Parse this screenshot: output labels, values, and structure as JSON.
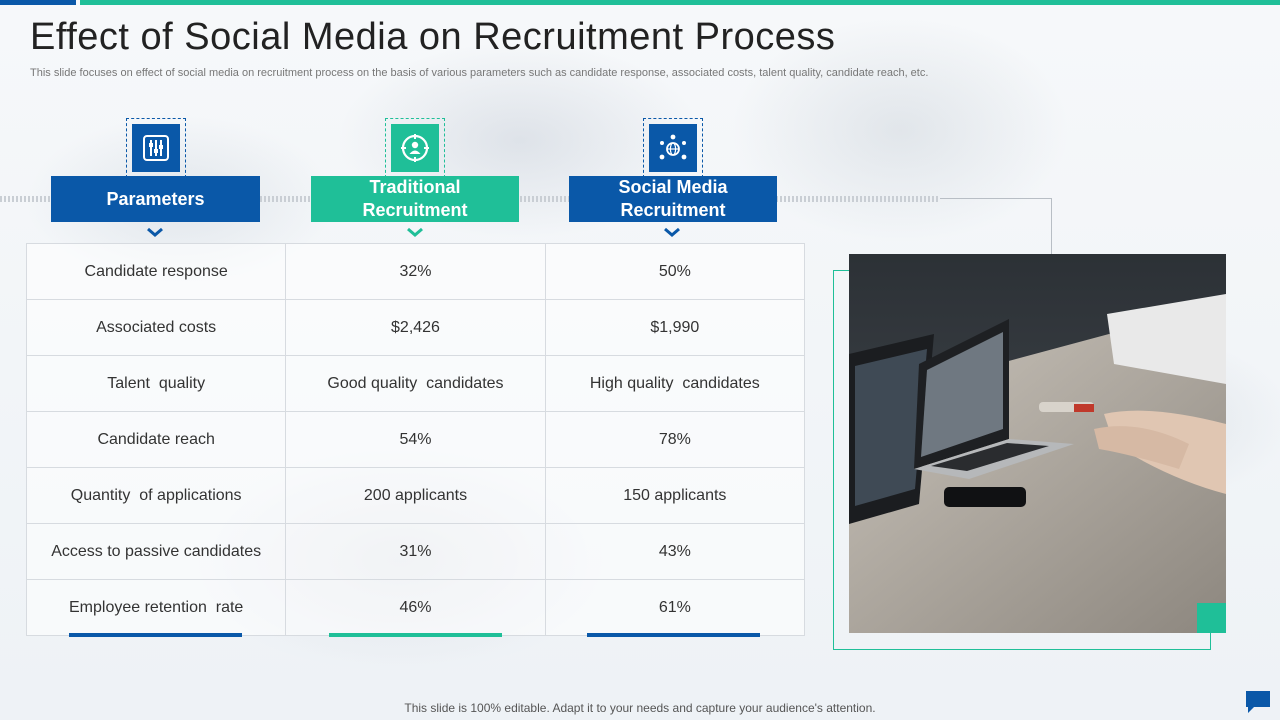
{
  "title": "Effect of Social Media on Recruitment Process",
  "subtitle": "This slide focuses on effect of social media on recruitment process on the basis of various parameters such as candidate response, associated costs, talent quality, candidate reach, etc.",
  "columns": [
    {
      "label": "Parameters",
      "icon": "sliders-icon"
    },
    {
      "label": "Traditional Recruitment",
      "icon": "target-person-icon"
    },
    {
      "label": "Social Media Recruitment",
      "icon": "network-globe-icon"
    }
  ],
  "rows": [
    [
      "Candidate response",
      "32%",
      "50%"
    ],
    [
      "Associated costs",
      "$2,426",
      "$1,990"
    ],
    [
      "Talent  quality",
      "Good quality  candidates",
      "High quality  candidates"
    ],
    [
      "Candidate reach",
      "54%",
      "78%"
    ],
    [
      "Quantity  of applications",
      "200 applicants",
      "150 applicants"
    ],
    [
      "Access to passive candidates",
      "31%",
      "43%"
    ],
    [
      "Employee retention  rate",
      "46%",
      "61%"
    ]
  ],
  "footer": "This slide is 100% editable. Adapt it to your needs and capture your audience's attention.",
  "colors": {
    "blue": "#0a58a8",
    "teal": "#1fbf98"
  }
}
